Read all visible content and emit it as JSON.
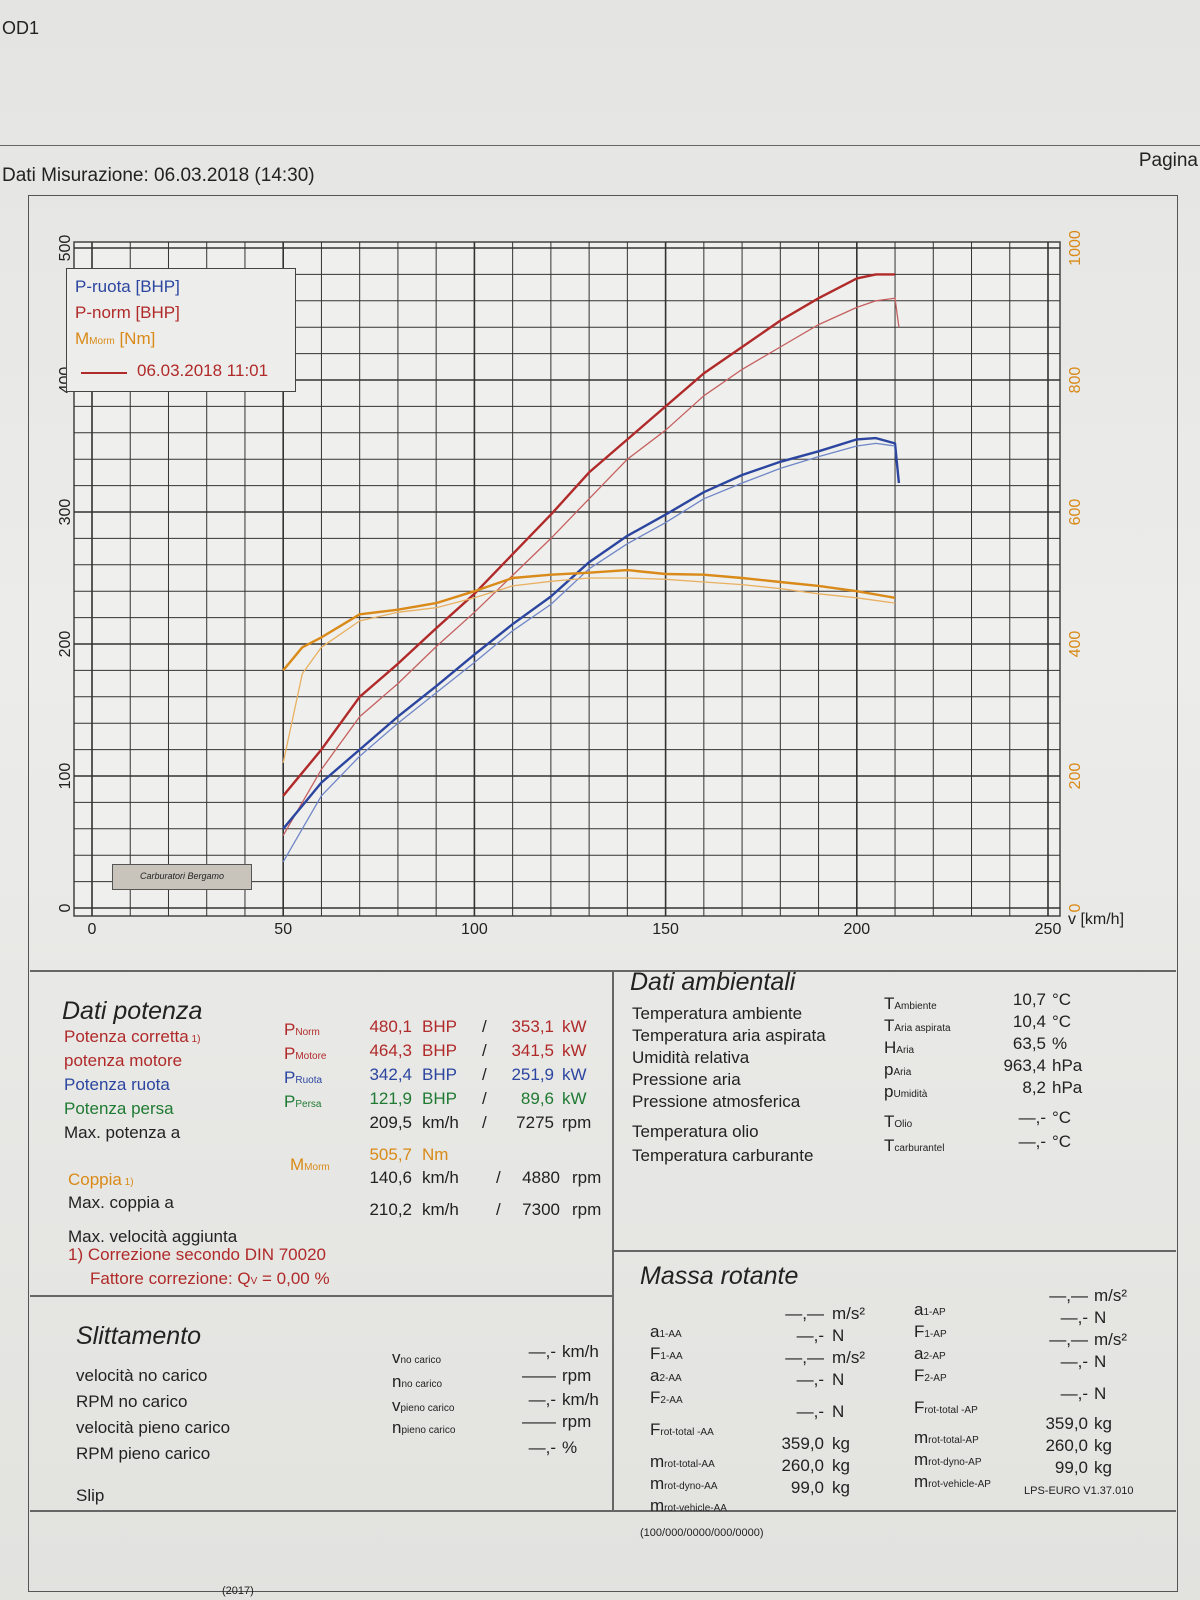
{
  "header": {
    "code": "OD1",
    "measurement_date": "Dati Misurazione: 06.03.2018 (14:30)",
    "page_label": "Pagina"
  },
  "chart_data": {
    "type": "line",
    "xlabel": "v [km/h]",
    "xlim": [
      0,
      250
    ],
    "x_ticks": [
      "0",
      "50",
      "100",
      "150",
      "200",
      "250"
    ],
    "ylim_left": [
      0,
      500
    ],
    "y_ticks_left": [
      "0",
      "100",
      "200",
      "300",
      "400",
      "500"
    ],
    "ylim_right": [
      0,
      1000
    ],
    "y_ticks_right": [
      "0",
      "200",
      "400",
      "600",
      "800",
      "1000"
    ],
    "grid": true,
    "legend_position": "top-left",
    "legend": [
      "P-ruota [BHP]",
      "P-norm [BHP]",
      "M",
      "Morm",
      " [Nm]",
      "06.03.2018 11:01"
    ],
    "series": [
      {
        "name": "P-norm [BHP]",
        "axis": "left",
        "color": "#b02a2a",
        "x": [
          50,
          60,
          70,
          80,
          90,
          100,
          110,
          120,
          130,
          140,
          150,
          160,
          170,
          180,
          190,
          200,
          205,
          210
        ],
        "y": [
          85,
          120,
          160,
          185,
          212,
          238,
          268,
          298,
          330,
          355,
          380,
          405,
          425,
          445,
          462,
          477,
          480,
          480
        ]
      },
      {
        "name": "P-norm [BHP]",
        "axis": "left",
        "color": "#c56060",
        "x": [
          50,
          60,
          70,
          80,
          90,
          100,
          110,
          120,
          130,
          140,
          150,
          160,
          170,
          180,
          190,
          200,
          205,
          210,
          211
        ],
        "y": [
          55,
          105,
          145,
          170,
          198,
          224,
          252,
          280,
          310,
          340,
          362,
          388,
          408,
          425,
          442,
          455,
          460,
          462,
          440
        ]
      },
      {
        "name": "P-ruota [BHP]",
        "axis": "left",
        "color": "#2c46a0",
        "x": [
          50,
          60,
          70,
          80,
          90,
          100,
          110,
          120,
          130,
          140,
          150,
          160,
          170,
          180,
          190,
          200,
          205,
          210,
          211
        ],
        "y": [
          60,
          95,
          120,
          145,
          168,
          192,
          215,
          236,
          262,
          282,
          298,
          315,
          328,
          338,
          346,
          355,
          356,
          352,
          322
        ]
      },
      {
        "name": "P-ruota [BHP]",
        "axis": "left",
        "color": "#6f86c8",
        "x": [
          50,
          60,
          70,
          80,
          90,
          100,
          110,
          120,
          130,
          140,
          150,
          160,
          170,
          180,
          190,
          200,
          205,
          210
        ],
        "y": [
          35,
          85,
          115,
          140,
          163,
          186,
          210,
          230,
          257,
          276,
          292,
          310,
          322,
          333,
          342,
          350,
          352,
          350
        ]
      },
      {
        "name": "M",
        "axis": "right",
        "color": "#d98a18",
        "x": [
          50,
          55,
          60,
          70,
          80,
          90,
          100,
          110,
          120,
          130,
          140,
          150,
          160,
          170,
          180,
          190,
          200,
          210
        ],
        "y": [
          360,
          395,
          410,
          445,
          452,
          462,
          480,
          500,
          505,
          508,
          512,
          506,
          505,
          500,
          494,
          488,
          480,
          470
        ]
      },
      {
        "name": "M",
        "axis": "right",
        "color": "#e8b060",
        "x": [
          50,
          55,
          60,
          70,
          80,
          90,
          100,
          110,
          120,
          130,
          140,
          150,
          160,
          170,
          180,
          190,
          200,
          210
        ],
        "y": [
          220,
          355,
          395,
          435,
          448,
          455,
          470,
          488,
          495,
          500,
          500,
          498,
          494,
          490,
          484,
          476,
          470,
          462
        ]
      }
    ]
  },
  "legend_box": {
    "p_ruota": "P-ruota [BHP]",
    "p_norm": "P-norm [BHP]",
    "m_main": "M",
    "m_sub": "Morm",
    "m_unit": " [Nm]",
    "date": "06.03.2018 11:01"
  },
  "logo_text": "Carburatori Bergamo",
  "power": {
    "title": "Dati potenza",
    "rows": [
      {
        "label": "Potenza corretta",
        "note": " 1)",
        "sym": "P",
        "sub": "Norm",
        "v1": "480,1",
        "u1": "BHP",
        "v2": "353,1",
        "u2": "kW",
        "sep": "/"
      },
      {
        "label": "potenza motore",
        "sym": "P",
        "sub": "Motore",
        "v1": "464,3",
        "u1": "BHP",
        "v2": "341,5",
        "u2": "kW",
        "sep": "/"
      },
      {
        "label": "Potenza ruota",
        "sym": "P",
        "sub": "Ruota",
        "v1": "342,4",
        "u1": "BHP",
        "v2": "251,9",
        "u2": "kW",
        "sep": "/"
      },
      {
        "label": "Potenza persa",
        "sym": "P",
        "sub": "Persa",
        "v1": "121,9",
        "u1": "BHP",
        "v2": "89,6",
        "u2": "kW",
        "sep": "/"
      },
      {
        "label": "Max. potenza a",
        "v1": "209,5",
        "u1": "km/h",
        "v2": "7275",
        "u2": "rpm",
        "sep": "/"
      }
    ],
    "torque": {
      "label": "Coppia",
      "note": " 1)",
      "sym": "M",
      "sub": "Morm",
      "v1": "505,7",
      "u1": "Nm"
    },
    "max_torque": {
      "label": "Max. coppia a",
      "v1": "140,6",
      "u1": "km/h",
      "v2": "4880",
      "u2": "rpm",
      "sep": "/"
    },
    "max_speed": {
      "label": "Max. velocità aggiunta",
      "v1": "210,2",
      "u1": "km/h",
      "v2": "7300",
      "u2": "rpm",
      "sep": "/"
    },
    "footnote1": "1) Correzione secondo DIN 70020",
    "footnote2_label": "Fattore correzione: Q",
    "footnote2_sub": "V",
    "footnote2_value": " =   0,00 %"
  },
  "ambient": {
    "title": "Dati ambientali",
    "rows": [
      {
        "label": "Temperatura ambiente",
        "sym": "T",
        "sub": "Ambiente",
        "value": "10,7",
        "unit": "°C"
      },
      {
        "label": "Temperatura aria aspirata",
        "sym": "T",
        "sub": "Aria aspirata",
        "value": "10,4",
        "unit": "°C"
      },
      {
        "label": "Umidità relativa",
        "sym": "H",
        "sub": "Aria",
        "value": "63,5",
        "unit": "%"
      },
      {
        "label": "Pressione aria",
        "sym": "p",
        "sub": "Aria",
        "value": "963,4",
        "unit": "hPa"
      },
      {
        "label": "Pressione atmosferica",
        "sym": "p",
        "sub": "Umidità",
        "value": "8,2",
        "unit": "hPa"
      },
      {
        "label": "Temperatura olio",
        "sym": "T",
        "sub": "Olio",
        "value": "—,-",
        "unit": "°C"
      },
      {
        "label": "Temperatura carburante",
        "sym": "T",
        "sub": "carburantel",
        "value": "—,-",
        "unit": "°C"
      }
    ]
  },
  "slip": {
    "title": "Slittamento",
    "labels": [
      "velocità no carico",
      "RPM no carico",
      "velocità pieno carico",
      "RPM pieno carico",
      "Slip"
    ],
    "rows": [
      {
        "sym": "v",
        "sub": "no carico",
        "value": "—,-",
        "unit": "km/h"
      },
      {
        "sym": "n",
        "sub": "no carico",
        "value": "——",
        "unit": "rpm"
      },
      {
        "sym": "v",
        "sub": "pieno carico",
        "value": "—,-",
        "unit": "km/h"
      },
      {
        "sym": "n",
        "sub": "pieno carico",
        "value": "——",
        "unit": "rpm"
      },
      {
        "sym": "",
        "sub": "",
        "value": "—,-",
        "unit": "%"
      }
    ]
  },
  "rotating": {
    "title": "Massa rotante",
    "left": [
      {
        "sym": "a",
        "sub": "1-AA",
        "value": "—,—",
        "unit": "m/s²"
      },
      {
        "sym": "F",
        "sub": "1-AA",
        "value": "—,-",
        "unit": "N"
      },
      {
        "sym": "a",
        "sub": "2-AA",
        "value": "—,—",
        "unit": "m/s²"
      },
      {
        "sym": "F",
        "sub": "2-AA",
        "value": "—,-",
        "unit": "N"
      },
      {
        "sym": "F",
        "sub": "rot-total -AA",
        "value": "—,-",
        "unit": "N"
      },
      {
        "sym": "m",
        "sub": "rot-total-AA",
        "value": "359,0",
        "unit": "kg"
      },
      {
        "sym": "m",
        "sub": "rot-dyno-AA",
        "value": "260,0",
        "unit": "kg"
      },
      {
        "sym": "m",
        "sub": "rot-vehicle-AA",
        "value": "99,0",
        "unit": "kg"
      }
    ],
    "right": [
      {
        "sym": "a",
        "sub": "1-AP",
        "value": "—,—",
        "unit": "m/s²"
      },
      {
        "sym": "F",
        "sub": "1-AP",
        "value": "—,-",
        "unit": "N"
      },
      {
        "sym": "a",
        "sub": "2-AP",
        "value": "—,—",
        "unit": "m/s²"
      },
      {
        "sym": "F",
        "sub": "2-AP",
        "value": "—,-",
        "unit": "N"
      },
      {
        "sym": "F",
        "sub": "rot-total -AP",
        "value": "—,-",
        "unit": "N"
      },
      {
        "sym": "m",
        "sub": "rot-total-AP",
        "value": "359,0",
        "unit": "kg"
      },
      {
        "sym": "m",
        "sub": "rot-dyno-AP",
        "value": "260,0",
        "unit": "kg"
      },
      {
        "sym": "m",
        "sub": "rot-vehicle-AP",
        "value": "99,0",
        "unit": "kg"
      }
    ]
  },
  "footer": {
    "version": "LPS-EURO V1.37.010",
    "code": "(100/000/0000/000/0000)",
    "bottom": "(2017)"
  }
}
